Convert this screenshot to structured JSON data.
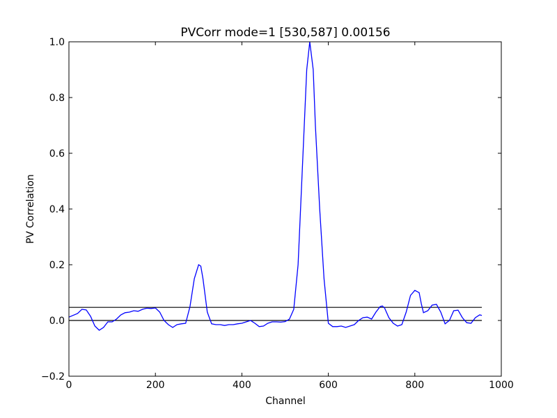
{
  "chart_data": {
    "type": "line",
    "title": "PVCorr mode=1 [530,587] 0.00156",
    "x_label": "Channel",
    "y_label": "PV Correlation",
    "x": [
      0,
      20,
      30,
      40,
      50,
      60,
      70,
      80,
      90,
      100,
      110,
      120,
      130,
      140,
      150,
      160,
      170,
      180,
      190,
      200,
      210,
      220,
      230,
      240,
      250,
      260,
      270,
      280,
      290,
      300,
      305,
      310,
      320,
      330,
      340,
      350,
      360,
      370,
      380,
      390,
      400,
      410,
      420,
      430,
      440,
      450,
      460,
      470,
      480,
      490,
      500,
      510,
      520,
      530,
      540,
      550,
      557,
      565,
      570,
      580,
      590,
      600,
      610,
      620,
      630,
      640,
      650,
      660,
      670,
      680,
      690,
      700,
      710,
      720,
      725,
      730,
      740,
      750,
      760,
      770,
      780,
      790,
      800,
      810,
      815,
      820,
      830,
      840,
      850,
      860,
      870,
      880,
      890,
      900,
      910,
      920,
      930,
      940,
      950,
      955
    ],
    "series": [
      {
        "color": "#0000ff",
        "values": [
          0.012,
          0.025,
          0.04,
          0.038,
          0.015,
          -0.02,
          -0.035,
          -0.025,
          -0.005,
          -0.005,
          0.005,
          0.02,
          0.028,
          0.03,
          0.035,
          0.033,
          0.04,
          0.044,
          0.043,
          0.045,
          0.03,
          0.0,
          -0.015,
          -0.025,
          -0.015,
          -0.012,
          -0.01,
          0.05,
          0.15,
          0.2,
          0.195,
          0.15,
          0.03,
          -0.012,
          -0.015,
          -0.015,
          -0.018,
          -0.015,
          -0.015,
          -0.012,
          -0.01,
          -0.005,
          0.0,
          -0.01,
          -0.022,
          -0.02,
          -0.01,
          -0.005,
          -0.005,
          -0.006,
          -0.004,
          0.005,
          0.04,
          0.2,
          0.55,
          0.9,
          1.0,
          0.9,
          0.7,
          0.4,
          0.15,
          -0.01,
          -0.022,
          -0.022,
          -0.02,
          -0.025,
          -0.02,
          -0.015,
          0.0,
          0.01,
          0.012,
          0.005,
          0.03,
          0.05,
          0.052,
          0.045,
          0.01,
          -0.01,
          -0.02,
          -0.015,
          0.03,
          0.09,
          0.108,
          0.1,
          0.06,
          0.028,
          0.035,
          0.055,
          0.058,
          0.03,
          -0.012,
          0.0,
          0.035,
          0.037,
          0.01,
          -0.008,
          -0.01,
          0.01,
          0.02,
          0.018
        ]
      }
    ],
    "hlines": [
      0,
      0.047
    ],
    "hline_color": "#000000",
    "xlim": [
      0,
      1000
    ],
    "xticks": [
      0,
      200,
      400,
      600,
      800,
      1000
    ],
    "ylim": [
      -0.2,
      1.0
    ],
    "yticks": [
      {
        "value": -0.2,
        "label": "−0.2"
      },
      {
        "value": 0,
        "label": "0.0"
      },
      0.2,
      0.4,
      0.6,
      0.8,
      {
        "value": 1.0,
        "label": "1.0"
      }
    ],
    "grid": false
  }
}
